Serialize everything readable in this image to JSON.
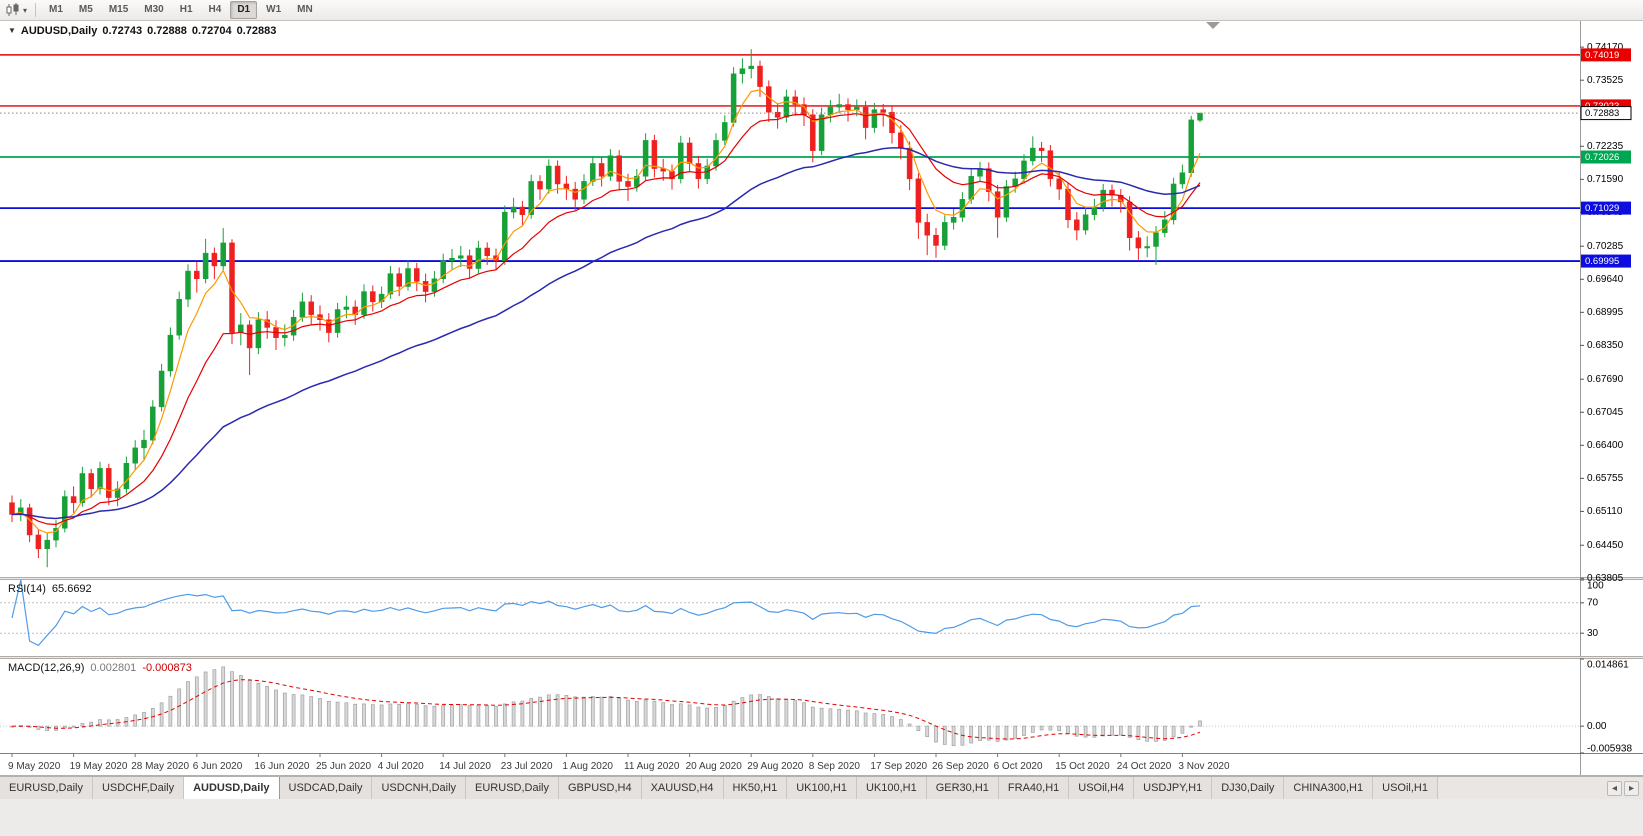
{
  "toolbar": {
    "timeframe_buttons": [
      "M1",
      "M5",
      "M15",
      "M30",
      "H1",
      "H4",
      "D1",
      "W1",
      "MN"
    ],
    "active": "D1",
    "chart_type_dropdown_icon": "▾"
  },
  "chart": {
    "header": {
      "marker": "▼",
      "title": "AUDUSD,Daily",
      "open": "0.72743",
      "high": "0.72888",
      "low": "0.72704",
      "close": "0.72883"
    }
  },
  "chart_data": {
    "type": "candlestick",
    "symbol": "AUDUSD",
    "period": "Daily",
    "colors": {
      "up": "#18A038",
      "down": "#EE2020",
      "background": "#FFFFFF",
      "current_price_line": "#888888"
    },
    "y_axis": {
      "top": 0.7468,
      "bottom": 0.6383,
      "ticks": [
        "0.74170",
        "0.73525",
        "0.72235",
        "0.71590",
        "0.70945",
        "0.70285",
        "0.69640",
        "0.68995",
        "0.68350",
        "0.67690",
        "0.67045",
        "0.66400",
        "0.65755",
        "0.65110",
        "0.64450",
        "0.63805"
      ]
    },
    "x_labels": [
      "9 May 2020",
      "19 May 2020",
      "28 May 2020",
      "6 Jun 2020",
      "16 Jun 2020",
      "25 Jun 2020",
      "4 Jul 2020",
      "14 Jul 2020",
      "23 Jul 2020",
      "1 Aug 2020",
      "11 Aug 2020",
      "20 Aug 2020",
      "29 Aug 2020",
      "8 Sep 2020",
      "17 Sep 2020",
      "26 Sep 2020",
      "6 Oct 2020",
      "15 Oct 2020",
      "24 Oct 2020",
      "3 Nov 2020"
    ],
    "label_step": 7,
    "h_lines": [
      {
        "price": 0.74019,
        "label": "0.74019",
        "color": "#E60000",
        "width": 1.4
      },
      {
        "price": 0.73023,
        "label": "0.73023",
        "color": "#E60000",
        "width": 1.4
      },
      {
        "price": 0.72026,
        "label": "0.72026",
        "color": "#00A651",
        "width": 1.8
      },
      {
        "price": 0.71029,
        "label": "0.71029",
        "color": "#0D0DE0",
        "width": 1.8
      },
      {
        "price": 0.69995,
        "label": "0.69995",
        "color": "#0D0DE0",
        "width": 1.8
      }
    ],
    "current_price": {
      "value": 0.72883,
      "label": "0.72883"
    },
    "moving_averages": [
      {
        "name": "ma-fast",
        "period": 5,
        "color": "#FF9900",
        "width": 1.2
      },
      {
        "name": "ma-mid",
        "period": 13,
        "color": "#E60000",
        "width": 1.2
      },
      {
        "name": "ma-slow",
        "period": 40,
        "color": "#2A2AB0",
        "width": 1.5
      }
    ],
    "candles": [
      [
        0.6528,
        0.6542,
        0.649,
        0.6505
      ],
      [
        0.6505,
        0.6535,
        0.6492,
        0.6518
      ],
      [
        0.6518,
        0.6526,
        0.6451,
        0.6465
      ],
      [
        0.6465,
        0.6476,
        0.642,
        0.6438
      ],
      [
        0.6438,
        0.647,
        0.6402,
        0.6455
      ],
      [
        0.6455,
        0.6494,
        0.6441,
        0.6478
      ],
      [
        0.6478,
        0.6552,
        0.647,
        0.654
      ],
      [
        0.654,
        0.656,
        0.6508,
        0.6528
      ],
      [
        0.6528,
        0.6598,
        0.652,
        0.6585
      ],
      [
        0.6585,
        0.6594,
        0.6538,
        0.6555
      ],
      [
        0.6555,
        0.6608,
        0.6544,
        0.6595
      ],
      [
        0.6595,
        0.6604,
        0.6523,
        0.6538
      ],
      [
        0.6538,
        0.657,
        0.6521,
        0.6555
      ],
      [
        0.6555,
        0.6618,
        0.6546,
        0.6605
      ],
      [
        0.6605,
        0.665,
        0.6592,
        0.6635
      ],
      [
        0.6635,
        0.667,
        0.6612,
        0.665
      ],
      [
        0.665,
        0.6728,
        0.6642,
        0.6715
      ],
      [
        0.6715,
        0.6799,
        0.6706,
        0.6785
      ],
      [
        0.6785,
        0.687,
        0.6774,
        0.6855
      ],
      [
        0.6855,
        0.694,
        0.6846,
        0.6925
      ],
      [
        0.6925,
        0.6993,
        0.691,
        0.698
      ],
      [
        0.698,
        0.6998,
        0.6938,
        0.6965
      ],
      [
        0.6965,
        0.7043,
        0.6956,
        0.7015
      ],
      [
        0.7015,
        0.7026,
        0.6964,
        0.699
      ],
      [
        0.699,
        0.7064,
        0.6982,
        0.7035
      ],
      [
        0.7035,
        0.7042,
        0.6838,
        0.686
      ],
      [
        0.686,
        0.6898,
        0.6835,
        0.6875
      ],
      [
        0.6875,
        0.6884,
        0.6777,
        0.683
      ],
      [
        0.683,
        0.69,
        0.6818,
        0.6885
      ],
      [
        0.6885,
        0.6902,
        0.6848,
        0.687
      ],
      [
        0.687,
        0.6884,
        0.6826,
        0.685
      ],
      [
        0.685,
        0.6876,
        0.6833,
        0.6855
      ],
      [
        0.6855,
        0.6904,
        0.6844,
        0.689
      ],
      [
        0.689,
        0.6938,
        0.6881,
        0.692
      ],
      [
        0.692,
        0.6933,
        0.6876,
        0.6895
      ],
      [
        0.6895,
        0.6913,
        0.6864,
        0.6885
      ],
      [
        0.6885,
        0.6898,
        0.6841,
        0.686
      ],
      [
        0.686,
        0.6918,
        0.685,
        0.6905
      ],
      [
        0.6905,
        0.6932,
        0.6888,
        0.691
      ],
      [
        0.691,
        0.6923,
        0.6875,
        0.6895
      ],
      [
        0.6895,
        0.6954,
        0.6887,
        0.694
      ],
      [
        0.694,
        0.6952,
        0.6901,
        0.692
      ],
      [
        0.692,
        0.695,
        0.6908,
        0.6935
      ],
      [
        0.6935,
        0.699,
        0.6926,
        0.6975
      ],
      [
        0.6975,
        0.6987,
        0.6931,
        0.695
      ],
      [
        0.695,
        0.7,
        0.6942,
        0.6985
      ],
      [
        0.6985,
        0.6996,
        0.6941,
        0.696
      ],
      [
        0.696,
        0.6975,
        0.6919,
        0.694
      ],
      [
        0.694,
        0.698,
        0.693,
        0.6965
      ],
      [
        0.6965,
        0.7014,
        0.6956,
        0.7
      ],
      [
        0.7,
        0.7023,
        0.6982,
        0.7005
      ],
      [
        0.7005,
        0.7029,
        0.6988,
        0.701
      ],
      [
        0.701,
        0.7022,
        0.6966,
        0.6985
      ],
      [
        0.6985,
        0.7039,
        0.6976,
        0.7025
      ],
      [
        0.7025,
        0.7036,
        0.6992,
        0.701
      ],
      [
        0.701,
        0.7024,
        0.6981,
        0.7
      ],
      [
        0.7,
        0.7108,
        0.6992,
        0.7095
      ],
      [
        0.7095,
        0.7123,
        0.7083,
        0.7105
      ],
      [
        0.7105,
        0.7117,
        0.7068,
        0.709
      ],
      [
        0.709,
        0.7168,
        0.7082,
        0.7155
      ],
      [
        0.7155,
        0.7167,
        0.7119,
        0.714
      ],
      [
        0.714,
        0.7198,
        0.7131,
        0.7185
      ],
      [
        0.7185,
        0.7196,
        0.7131,
        0.715
      ],
      [
        0.715,
        0.7166,
        0.7119,
        0.714
      ],
      [
        0.714,
        0.7154,
        0.7099,
        0.712
      ],
      [
        0.712,
        0.7169,
        0.7111,
        0.7155
      ],
      [
        0.7155,
        0.7204,
        0.7146,
        0.719
      ],
      [
        0.719,
        0.7202,
        0.7145,
        0.7165
      ],
      [
        0.7165,
        0.7218,
        0.7156,
        0.7205
      ],
      [
        0.7205,
        0.7216,
        0.7137,
        0.7155
      ],
      [
        0.7155,
        0.717,
        0.7117,
        0.7145
      ],
      [
        0.7145,
        0.7179,
        0.7135,
        0.7165
      ],
      [
        0.7165,
        0.7249,
        0.7156,
        0.7235
      ],
      [
        0.7235,
        0.7246,
        0.7163,
        0.718
      ],
      [
        0.718,
        0.7199,
        0.7156,
        0.7175
      ],
      [
        0.7175,
        0.7188,
        0.7139,
        0.716
      ],
      [
        0.716,
        0.7244,
        0.7151,
        0.723
      ],
      [
        0.723,
        0.7241,
        0.7174,
        0.719
      ],
      [
        0.719,
        0.7205,
        0.7141,
        0.716
      ],
      [
        0.716,
        0.7199,
        0.715,
        0.7185
      ],
      [
        0.7185,
        0.7249,
        0.7176,
        0.7235
      ],
      [
        0.7235,
        0.7284,
        0.7226,
        0.727
      ],
      [
        0.727,
        0.7378,
        0.7262,
        0.7365
      ],
      [
        0.7365,
        0.7395,
        0.7346,
        0.7375
      ],
      [
        0.7375,
        0.7413,
        0.7356,
        0.738
      ],
      [
        0.738,
        0.7391,
        0.732,
        0.734
      ],
      [
        0.734,
        0.7352,
        0.7271,
        0.729
      ],
      [
        0.729,
        0.7308,
        0.7258,
        0.728
      ],
      [
        0.728,
        0.7334,
        0.727,
        0.732
      ],
      [
        0.732,
        0.7333,
        0.7283,
        0.7305
      ],
      [
        0.7305,
        0.7319,
        0.7263,
        0.7285
      ],
      [
        0.7285,
        0.7296,
        0.7192,
        0.7215
      ],
      [
        0.7215,
        0.7299,
        0.7206,
        0.7285
      ],
      [
        0.7285,
        0.7314,
        0.727,
        0.73
      ],
      [
        0.73,
        0.7326,
        0.7288,
        0.7305
      ],
      [
        0.7305,
        0.7317,
        0.7272,
        0.7295
      ],
      [
        0.7295,
        0.7315,
        0.7282,
        0.73
      ],
      [
        0.73,
        0.7312,
        0.7237,
        0.726
      ],
      [
        0.726,
        0.7308,
        0.725,
        0.7295
      ],
      [
        0.7295,
        0.7306,
        0.7262,
        0.729
      ],
      [
        0.729,
        0.7301,
        0.7229,
        0.725
      ],
      [
        0.725,
        0.7265,
        0.7198,
        0.722
      ],
      [
        0.722,
        0.7233,
        0.7138,
        0.716
      ],
      [
        0.716,
        0.7171,
        0.7043,
        0.7075
      ],
      [
        0.7075,
        0.7092,
        0.7011,
        0.705
      ],
      [
        0.705,
        0.7064,
        0.7006,
        0.703
      ],
      [
        0.703,
        0.7089,
        0.7021,
        0.7075
      ],
      [
        0.7075,
        0.7101,
        0.7061,
        0.7085
      ],
      [
        0.7085,
        0.7134,
        0.7076,
        0.712
      ],
      [
        0.712,
        0.7179,
        0.7111,
        0.7165
      ],
      [
        0.7165,
        0.7193,
        0.7154,
        0.718
      ],
      [
        0.718,
        0.7192,
        0.7116,
        0.7135
      ],
      [
        0.7135,
        0.7148,
        0.7045,
        0.7085
      ],
      [
        0.7085,
        0.7158,
        0.7076,
        0.7145
      ],
      [
        0.7145,
        0.7174,
        0.7133,
        0.716
      ],
      [
        0.716,
        0.7208,
        0.7151,
        0.7195
      ],
      [
        0.7195,
        0.7243,
        0.7186,
        0.722
      ],
      [
        0.722,
        0.7232,
        0.7193,
        0.7215
      ],
      [
        0.7215,
        0.7226,
        0.7145,
        0.716
      ],
      [
        0.716,
        0.7174,
        0.7119,
        0.714
      ],
      [
        0.714,
        0.7152,
        0.7064,
        0.708
      ],
      [
        0.708,
        0.7095,
        0.704,
        0.706
      ],
      [
        0.706,
        0.7104,
        0.7051,
        0.709
      ],
      [
        0.709,
        0.7121,
        0.7079,
        0.7105
      ],
      [
        0.7105,
        0.715,
        0.7096,
        0.7138
      ],
      [
        0.7138,
        0.7149,
        0.7106,
        0.7128
      ],
      [
        0.7128,
        0.714,
        0.7094,
        0.7115
      ],
      [
        0.7115,
        0.7126,
        0.702,
        0.7045
      ],
      [
        0.7045,
        0.7058,
        0.7002,
        0.7025
      ],
      [
        0.7025,
        0.7048,
        0.7007,
        0.7028
      ],
      [
        0.7028,
        0.7068,
        0.6992,
        0.7055
      ],
      [
        0.7055,
        0.7097,
        0.7046,
        0.708
      ],
      [
        0.708,
        0.7162,
        0.7071,
        0.715
      ],
      [
        0.715,
        0.7188,
        0.7141,
        0.7172
      ],
      [
        0.7172,
        0.7283,
        0.7164,
        0.7275
      ],
      [
        0.72743,
        0.72888,
        0.72704,
        0.72883
      ]
    ],
    "indicators": {
      "rsi": {
        "name": "RSI(14)",
        "value": "65.6692",
        "period": 14,
        "levels": [
          70,
          30
        ],
        "axis_labels": [
          "100",
          "70",
          "30"
        ],
        "axis_values": [
          100,
          70,
          30
        ],
        "color": "#4F9BE8"
      },
      "macd": {
        "name": "MACD(12,26,9)",
        "value_main": "0.002801",
        "value_signal": "-0.000873",
        "fast": 12,
        "slow": 26,
        "signal": 9,
        "axis_labels": [
          "0.014861",
          "0.00",
          "-0.005938"
        ],
        "axis_values": [
          0.014861,
          0,
          -0.005938
        ],
        "range_max": 0.014861,
        "range_min": -0.005938,
        "bar_fill": "#D8D8D8",
        "bar_stroke": "#A0A0A0",
        "signal_color": "#E60000"
      }
    }
  },
  "tabbar": {
    "tabs": [
      "EURUSD,Daily",
      "USDCHF,Daily",
      "AUDUSD,Daily",
      "USDCAD,Daily",
      "USDCNH,Daily",
      "EURUSD,Daily",
      "GBPUSD,H4",
      "XAUUSD,H4",
      "HK50,H1",
      "UK100,H1",
      "UK100,H1",
      "GER30,H1",
      "FRA40,H1",
      "USOil,H4",
      "USDJPY,H1",
      "DJ30,Daily",
      "CHINA300,H1",
      "USOil,H1"
    ],
    "active_index": 2,
    "scroll_left_icon": "◂",
    "scroll_right_icon": "▸"
  }
}
